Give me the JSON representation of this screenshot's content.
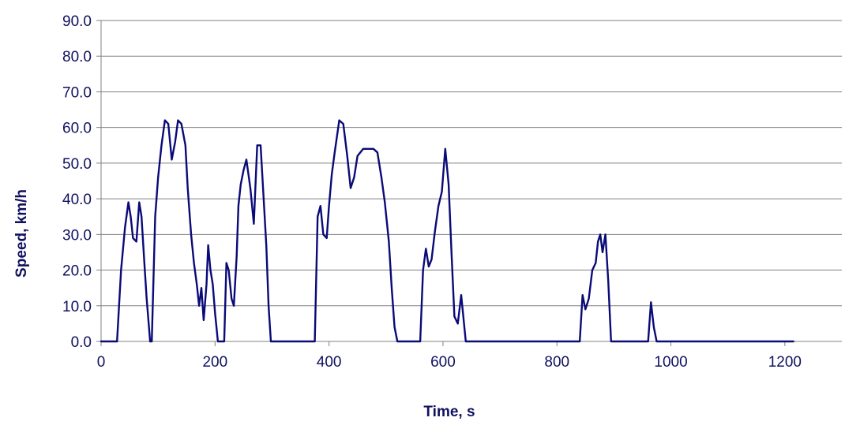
{
  "chart_data": {
    "type": "line",
    "xlabel": "Time, s",
    "ylabel": "Speed, km/h",
    "xlim": [
      0,
      1300
    ],
    "ylim": [
      0,
      90
    ],
    "xticks": [
      0,
      200,
      400,
      600,
      800,
      1000,
      1200
    ],
    "yticks": [
      "0.0",
      "10.0",
      "20.0",
      "30.0",
      "40.0",
      "50.0",
      "60.0",
      "70.0",
      "80.0",
      "90.0"
    ],
    "grid": "horizontal",
    "line_color": "#0a0a78",
    "series": [
      {
        "x": [
          0,
          28,
          35,
          42,
          48,
          52,
          56,
          62,
          67,
          71,
          76,
          80,
          86,
          89,
          95,
          100,
          106,
          112,
          118,
          124,
          130,
          135,
          141,
          148,
          152,
          158,
          163,
          168,
          172,
          176,
          180,
          185,
          188,
          192,
          196,
          200,
          205,
          210,
          216,
          220,
          224,
          229,
          233,
          238,
          241,
          245,
          250,
          255,
          262,
          268,
          274,
          280,
          285,
          290,
          294,
          298,
          304,
          310,
          315,
          322,
          330,
          340,
          350,
          375,
          380,
          385,
          390,
          396,
          400,
          405,
          410,
          418,
          425,
          432,
          438,
          444,
          450,
          455,
          460,
          466,
          472,
          478,
          485,
          492,
          498,
          505,
          510,
          515,
          520,
          528,
          560,
          565,
          570,
          575,
          580,
          586,
          592,
          598,
          604,
          610,
          615,
          620,
          626,
          632,
          640,
          645,
          650,
          660,
          665,
          670,
          710,
          716,
          722,
          728,
          733,
          737,
          740,
          744,
          748,
          753,
          760,
          800,
          840,
          845,
          850,
          856,
          862,
          868,
          872,
          876,
          880,
          885,
          890,
          895,
          960,
          965,
          970,
          975,
          1000,
          1006,
          1010,
          1015,
          1020,
          1025,
          1030,
          1040,
          1050,
          1058,
          1066,
          1074,
          1080,
          1086,
          1092,
          1098,
          1104,
          1110,
          1116,
          1122,
          1128,
          1134,
          1140,
          1148,
          1156,
          1162,
          1168,
          1172,
          1176,
          1180,
          1184,
          1188,
          1192,
          1196,
          1200,
          1205,
          1210,
          1215
        ],
        "y": [
          0,
          0,
          20,
          32,
          39,
          35,
          29,
          28,
          39,
          35,
          22,
          12,
          0,
          0,
          35,
          46,
          55,
          62,
          61,
          51,
          56,
          62,
          61,
          55,
          43,
          30,
          22,
          16,
          10,
          15,
          6,
          16,
          27,
          20,
          16,
          8,
          0,
          0,
          0,
          22,
          20,
          12,
          10,
          24,
          38,
          44,
          48,
          51,
          43,
          33,
          55,
          55,
          41,
          27,
          10,
          0,
          0,
          0,
          0,
          0,
          0,
          0,
          0,
          0,
          35,
          38,
          30,
          29,
          38,
          47,
          53,
          62,
          61,
          52,
          43,
          46,
          52,
          53,
          54,
          54,
          54,
          54,
          53,
          46,
          39,
          28,
          15,
          4,
          0,
          0,
          0,
          20,
          26,
          21,
          23,
          31,
          38,
          42,
          54,
          44,
          25,
          7,
          5,
          13,
          0,
          0,
          0,
          0,
          0,
          0,
          0,
          0,
          0,
          0,
          0,
          0,
          0,
          0,
          0,
          0,
          0,
          0,
          0,
          13,
          9,
          12,
          20,
          22,
          28,
          30,
          25,
          30,
          17,
          0,
          0,
          11,
          4,
          0,
          0,
          0,
          0,
          0,
          0,
          0,
          0,
          0,
          0,
          0,
          0,
          0,
          0,
          0,
          0,
          0,
          0,
          0,
          0,
          0,
          0,
          0,
          0,
          0,
          0,
          0,
          0,
          0,
          0,
          0,
          0,
          0,
          0,
          0,
          0,
          0,
          0,
          0
        ]
      }
    ]
  }
}
